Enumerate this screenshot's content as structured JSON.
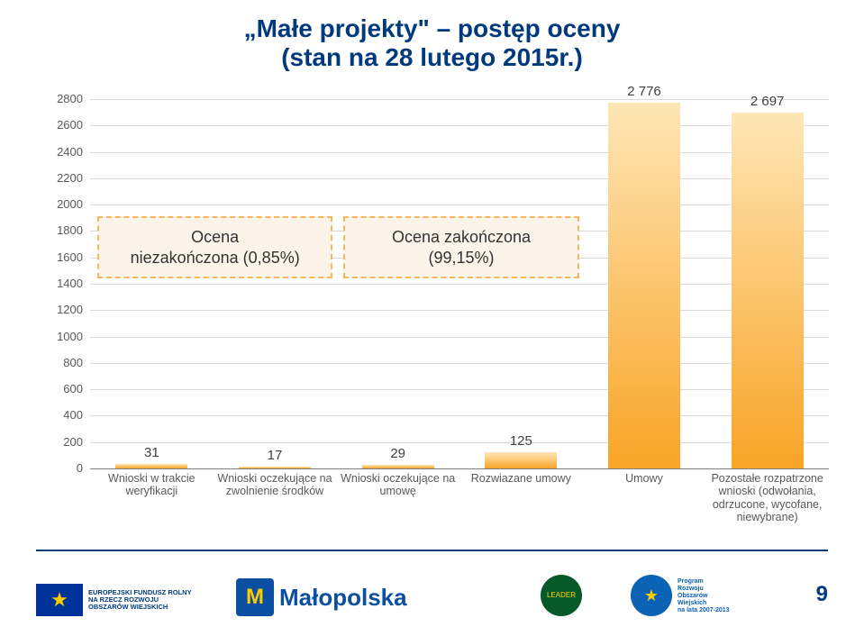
{
  "title_line1": "„Małe projekty\" – postęp oceny",
  "title_line2": "(stan na 28 lutego 2015r.)",
  "title_color": "#003a7d",
  "title_fontsize": 28,
  "page_number": "9",
  "chart": {
    "type": "bar",
    "y_min": 0,
    "y_max": 2800,
    "y_step": 200,
    "categories": [
      "Wnioski w trakcie weryfikacji",
      "Wnioski oczekujące na zwolnienie środków",
      "Wnioski oczekujące na umowę",
      "Rozwiazane umowy",
      "Umowy",
      "Pozostałe rozpatrzone wnioski (odwołania, odrzucone, wycofane, niewybrane)"
    ],
    "values": [
      31,
      17,
      29,
      125,
      2776,
      2697
    ],
    "value_labels": [
      "31",
      "17",
      "29",
      "125",
      "2 776",
      "2 697"
    ],
    "bar_color_top": "#fee6b6",
    "bar_color_bottom": "#f8a426",
    "grid_color": "#d9d9d9",
    "axis_color": "#7f7f7f",
    "label_color": "#595959",
    "value_color": "#404040",
    "annotations": [
      {
        "text_l1": "Ocena",
        "text_l2": "niezakończona (0,85%)",
        "covers": [
          0,
          1
        ]
      },
      {
        "text_l1": "Ocena zakończona",
        "text_l2": "(99,15%)",
        "covers": [
          2,
          3
        ]
      }
    ],
    "annot_border": "#f5b65e",
    "annot_bg": "#fdf4e9"
  },
  "footer": {
    "eu_text": "EUROPEJSKI FUNDUSZ ROLNY\nNA RZECZ ROZWOJU\nOBSZARÓW WIEJSKICH",
    "malopolska": "Małopolska",
    "leader": "LEADER",
    "prow_lines": "Program\nRozwoju\nObszarów\nWiejskich\nna lata 2007-2013"
  }
}
